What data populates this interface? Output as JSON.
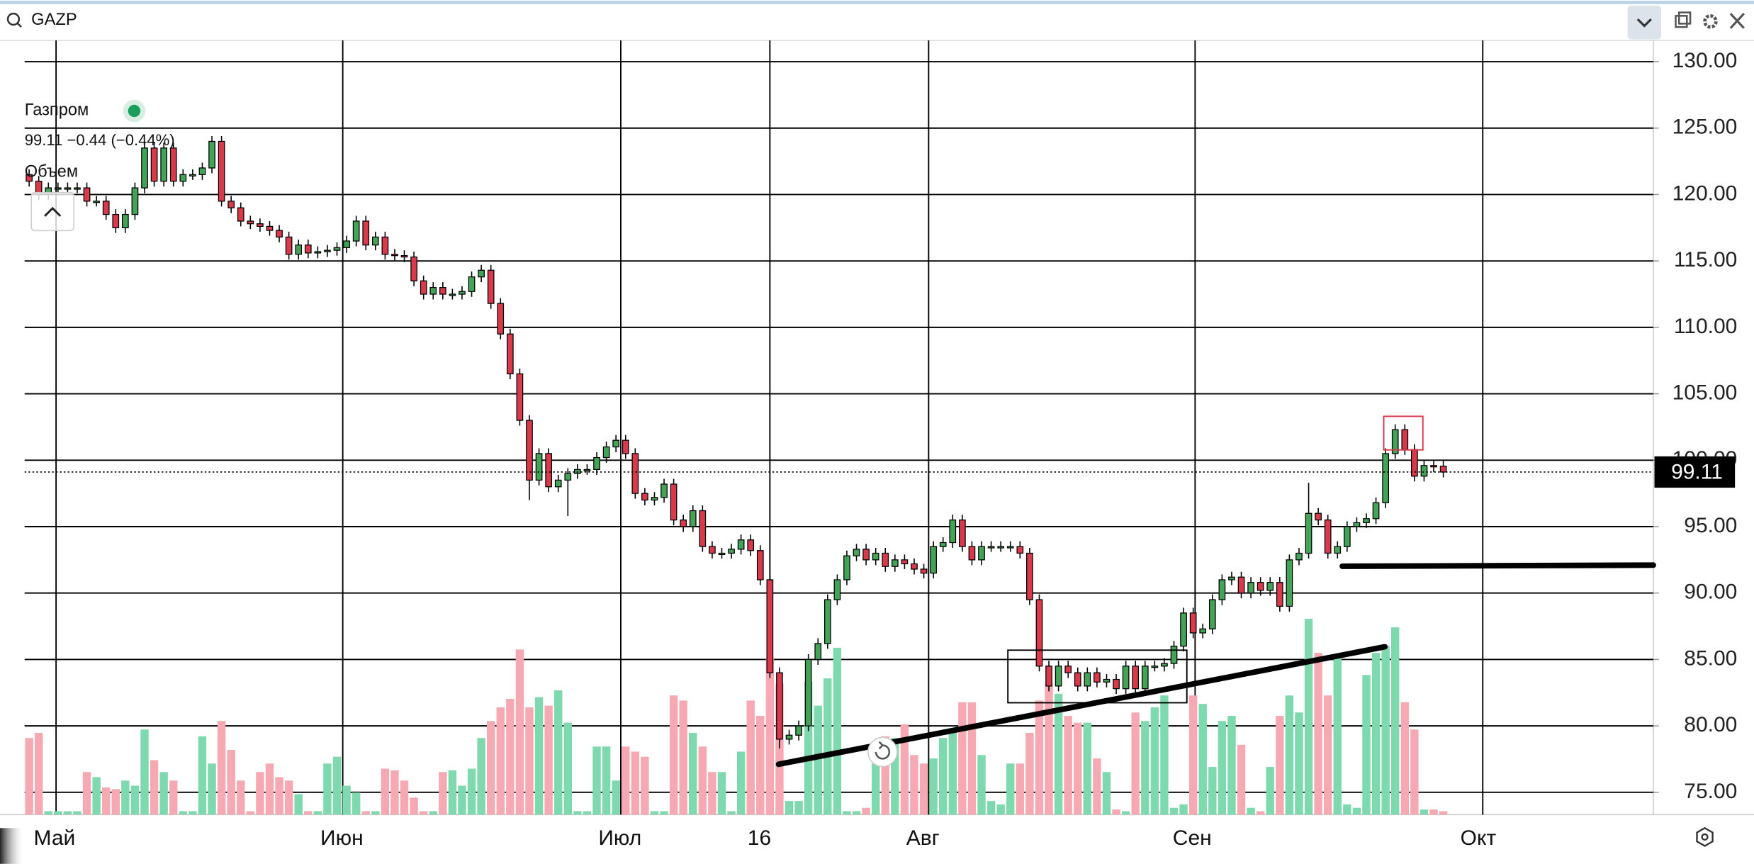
{
  "search": "GAZP",
  "legend": {
    "name": "Газпром",
    "quote": "99.11 −0.44 (−0.44%)",
    "volume_label": "Объем"
  },
  "chart_data": {
    "type": "candlestick",
    "categories": [
      null,
      null,
      null,
      null,
      null,
      null,
      null,
      null,
      null,
      null,
      null,
      null,
      null,
      null,
      null,
      null,
      null,
      null,
      null,
      null,
      null,
      null,
      null,
      null,
      null,
      null,
      null,
      null,
      null,
      null,
      null,
      null,
      null,
      null,
      null,
      null,
      null,
      null,
      null,
      null,
      null,
      null,
      null,
      null,
      null,
      null,
      null,
      null,
      null,
      null,
      null,
      null,
      null,
      null,
      null,
      null,
      null,
      null,
      null,
      null,
      null,
      null,
      null,
      null,
      null,
      null,
      null,
      null,
      null,
      null,
      null,
      null,
      null,
      null,
      null,
      null,
      null,
      null,
      null,
      null,
      null,
      null,
      null,
      null,
      null,
      null,
      null,
      null,
      null,
      null,
      null,
      null,
      null,
      null,
      null,
      null,
      null,
      null,
      null,
      null,
      null,
      null,
      null,
      null,
      null,
      null,
      null,
      null,
      null,
      null,
      null,
      null,
      null,
      null,
      null,
      null,
      null,
      null,
      null,
      null,
      null,
      null,
      null,
      null,
      null,
      null,
      null,
      null,
      null,
      null,
      null,
      null,
      null,
      null,
      null,
      null,
      null,
      null,
      null,
      null,
      null,
      null,
      null,
      null,
      null,
      null,
      null,
      null
    ],
    "open": [
      121.5,
      121,
      120,
      120.5,
      120.5,
      120.5,
      120.5,
      119.5,
      119.5,
      118.5,
      117.5,
      118.5,
      120.5,
      123.5,
      121,
      123.5,
      121,
      121.5,
      121.5,
      122,
      124,
      119.5,
      119,
      118,
      117.8,
      117.6,
      117.3,
      116.8,
      115.5,
      116.2,
      115.6,
      115.7,
      115.8,
      116,
      116.5,
      118,
      116.2,
      116.8,
      115.5,
      115.4,
      115.3,
      113.5,
      112.5,
      113,
      112.5,
      112.5,
      112.7,
      113.8,
      114.3,
      111.8,
      109.5,
      106.5,
      103,
      98.5,
      100.5,
      98,
      98.5,
      99,
      99.3,
      99.3,
      100.2,
      101,
      101.5,
      100.5,
      97.5,
      97,
      97.2,
      98.2,
      95.5,
      95,
      96.2,
      93.5,
      93,
      93,
      93.3,
      94,
      93.2,
      91,
      84,
      79,
      79.3,
      80,
      85,
      86.2,
      89.5,
      91,
      92.8,
      93.3,
      92.5,
      93,
      92,
      92.5,
      92.2,
      91.8,
      91.5,
      93.5,
      93.8,
      95.5,
      93.5,
      92.5,
      93.5,
      93.5,
      93.5,
      93.5,
      93,
      89.5,
      84.5,
      83,
      84.5,
      84,
      83,
      84,
      83.3,
      83.5,
      82.8,
      84.5,
      82.8,
      84.5,
      84.5,
      84.7,
      86,
      88.5,
      87,
      87.3,
      89.5,
      91,
      91.2,
      90,
      90.8,
      90.2,
      90.8,
      89,
      92.5,
      93,
      96,
      95.5,
      93,
      93.5,
      95,
      95.3,
      95.6,
      96.8,
      100.5,
      102.3,
      100.8,
      98.8,
      99.6,
      99.55
    ],
    "high": [
      121.9,
      121.4,
      120.9,
      120.9,
      120.9,
      120.9,
      120.9,
      119.9,
      119.9,
      118.9,
      118.9,
      120.9,
      123.9,
      123.9,
      123.9,
      123.9,
      121.9,
      121.9,
      122.4,
      124.4,
      124.4,
      119.9,
      119.4,
      118.4,
      118.2,
      118,
      117.7,
      117.2,
      116.6,
      116.6,
      116.1,
      116.2,
      116.4,
      116.9,
      118.4,
      118.4,
      117.2,
      117.2,
      115.9,
      115.8,
      115.7,
      113.9,
      113.4,
      113.4,
      112.9,
      113.1,
      114.2,
      114.7,
      114.7,
      112.2,
      109.9,
      106.9,
      103.4,
      100.9,
      100.9,
      98.9,
      99.4,
      99.7,
      99.7,
      100.6,
      101.4,
      101.9,
      101.9,
      100.9,
      97.9,
      97.6,
      98.6,
      98.6,
      95.9,
      96.6,
      96.6,
      93.9,
      93.4,
      93.7,
      94.4,
      94.4,
      93.6,
      91.4,
      84.4,
      79.7,
      80.4,
      85.4,
      86.6,
      89.9,
      91.4,
      93.2,
      93.7,
      93.7,
      93.4,
      93.4,
      92.9,
      92.9,
      92.6,
      92.2,
      93.9,
      94.2,
      95.9,
      95.9,
      93.9,
      93.9,
      93.9,
      93.9,
      93.9,
      93.9,
      93.4,
      89.9,
      84.9,
      84.9,
      84.9,
      84.4,
      84.4,
      84.4,
      83.9,
      83.9,
      84.9,
      84.9,
      84.9,
      84.9,
      85.1,
      86.4,
      88.9,
      88.9,
      87.7,
      89.9,
      91.4,
      91.6,
      91.6,
      91.2,
      91.2,
      91.2,
      91.2,
      92.9,
      93.4,
      98.3,
      96.4,
      95.9,
      93.9,
      95.4,
      95.7,
      96,
      97.2,
      100.9,
      102.7,
      102.7,
      101.2,
      100,
      100,
      99.95
    ],
    "low": [
      120.6,
      119.6,
      119.6,
      120.1,
      120.1,
      120.1,
      119.1,
      119.1,
      118.1,
      117.1,
      117.1,
      118.1,
      120.1,
      120.6,
      120.6,
      120.6,
      120.6,
      121.1,
      121.1,
      121.6,
      119.1,
      118.6,
      117.6,
      117.4,
      117.2,
      116.9,
      116.4,
      115.1,
      115.1,
      115.2,
      115.2,
      115.3,
      115.4,
      115.6,
      116.1,
      115.8,
      115.8,
      115.1,
      115,
      114.9,
      113.1,
      112.1,
      112.1,
      112.1,
      112.1,
      112.1,
      112.3,
      113.4,
      111.4,
      109.1,
      106.1,
      102.6,
      97,
      98.1,
      97.6,
      97.6,
      95.8,
      98.6,
      98.9,
      98.9,
      99.8,
      100.6,
      100.1,
      97.1,
      96.6,
      96.6,
      96.8,
      95.1,
      94.6,
      94.6,
      93.1,
      92.6,
      92.6,
      92.6,
      92.9,
      92.8,
      90.6,
      83.6,
      78.3,
      78.6,
      78.9,
      79.6,
      84.6,
      85.8,
      89.1,
      90.6,
      92.4,
      92.1,
      92.1,
      91.6,
      91.6,
      91.8,
      91.4,
      91.1,
      91.1,
      93.1,
      93.4,
      93.1,
      92.1,
      92.1,
      93.1,
      93.1,
      93.1,
      92.6,
      89.1,
      84.1,
      82.6,
      82.6,
      83.6,
      82.6,
      82.6,
      82.9,
      82.9,
      82.4,
      82.4,
      82.4,
      82.4,
      84.1,
      84.1,
      84.3,
      85.6,
      86.6,
      86.6,
      86.9,
      89.1,
      90.6,
      89.6,
      89.6,
      89.8,
      89.8,
      88.6,
      88.6,
      92.1,
      92.6,
      95.1,
      92.6,
      92.6,
      93.1,
      94.6,
      94.9,
      95.2,
      96.4,
      100.1,
      100.4,
      98.4,
      98.4,
      99.1,
      98.7
    ],
    "close": [
      121,
      120,
      120.5,
      120.5,
      120.5,
      120.5,
      119.5,
      119.5,
      118.5,
      117.5,
      118.5,
      120.5,
      123.5,
      121,
      123.5,
      121,
      121.5,
      121.5,
      122,
      124,
      119.5,
      119,
      118,
      117.8,
      117.6,
      117.3,
      116.8,
      115.5,
      116.2,
      115.6,
      115.7,
      115.8,
      116,
      116.5,
      118,
      116.2,
      116.8,
      115.5,
      115.4,
      115.3,
      113.5,
      112.5,
      113,
      112.5,
      112.5,
      112.7,
      113.8,
      114.3,
      111.8,
      109.5,
      106.5,
      103,
      98.5,
      100.5,
      98,
      98.5,
      99,
      99.3,
      99.3,
      100.2,
      101,
      101.5,
      100.5,
      97.5,
      97,
      97.2,
      98.2,
      95.5,
      95,
      96.2,
      93.5,
      93,
      93,
      93.3,
      94,
      93.2,
      91,
      84,
      79,
      79.3,
      80,
      85,
      86.2,
      89.5,
      91,
      92.8,
      93.3,
      92.5,
      93,
      92,
      92.5,
      92.2,
      91.8,
      91.5,
      93.5,
      93.8,
      95.5,
      93.5,
      92.5,
      93.5,
      93.5,
      93.5,
      93.5,
      93,
      89.5,
      84.5,
      83,
      84.5,
      84,
      83,
      84,
      83.3,
      83.5,
      82.8,
      84.5,
      82.8,
      84.5,
      84.5,
      84.7,
      86,
      88.5,
      87,
      87.3,
      89.5,
      91,
      91.2,
      90,
      90.8,
      90.2,
      90.8,
      89,
      92.5,
      93,
      96,
      95.5,
      93,
      93.5,
      95,
      95.3,
      95.6,
      96.8,
      100.5,
      102.3,
      100.8,
      98.8,
      99.6,
      99.55,
      99.11
    ],
    "volume": [
      45,
      48,
      2,
      2,
      2,
      2,
      25,
      22,
      16,
      15,
      20,
      17,
      50,
      32,
      25,
      20,
      2,
      2,
      46,
      30,
      55,
      38,
      20,
      2,
      25,
      30,
      22,
      20,
      12,
      2,
      2,
      30,
      34,
      17,
      13,
      2,
      2,
      27,
      26,
      20,
      10,
      2,
      2,
      25,
      26,
      17,
      27,
      45,
      55,
      63,
      68,
      97,
      63,
      69,
      64,
      73,
      54,
      2,
      2,
      40,
      40,
      20,
      40,
      37,
      34,
      2,
      2,
      70,
      67,
      48,
      40,
      25,
      25,
      2,
      37,
      67,
      58,
      92,
      77,
      8,
      8,
      78,
      64,
      80,
      98,
      2,
      2,
      4,
      30,
      46,
      45,
      53,
      35,
      30,
      33,
      45,
      50,
      66,
      66,
      35,
      8,
      6,
      30,
      30,
      48,
      67,
      77,
      71,
      58,
      54,
      54,
      33,
      25,
      3,
      2,
      60,
      55,
      63,
      70,
      4,
      6,
      70,
      65,
      28,
      55,
      58,
      41,
      4,
      2,
      28,
      58,
      70,
      60,
      115,
      95,
      70,
      94,
      6,
      4,
      82,
      95,
      99,
      110,
      66,
      50,
      3,
      3,
      2
    ],
    "colors": {
      "up": "#43a457",
      "down": "#d8394b",
      "volume_up": "#7fd9ae",
      "volume_down": "#f6a9b3"
    },
    "xlim": [
      -0.47,
      168.83
    ],
    "xticks": [
      {
        "value": 2.8,
        "label": "Май"
      },
      {
        "value": 32.6,
        "label": "Июн"
      },
      {
        "value": 61.5,
        "label": "Июл"
      },
      {
        "value": 77,
        "label": "16"
      },
      {
        "value": 93.5,
        "label": "Авг"
      },
      {
        "value": 121.2,
        "label": "Сен"
      },
      {
        "value": 151.1,
        "label": "Окт"
      }
    ],
    "ylim": [
      73.32,
      131.6
    ],
    "yticks": [
      {
        "value": 75,
        "label": "75.00"
      },
      {
        "value": 80,
        "label": "80.00"
      },
      {
        "value": 85,
        "label": "85.00"
      },
      {
        "value": 90,
        "label": "90.00"
      },
      {
        "value": 95,
        "label": "95.00"
      },
      {
        "value": 100,
        "label": "100.00"
      },
      {
        "value": 105,
        "label": "105.00"
      },
      {
        "value": 110,
        "label": "110.00"
      },
      {
        "value": 115,
        "label": "115.00"
      },
      {
        "value": 120,
        "label": "120.00"
      },
      {
        "value": 125,
        "label": "125.00"
      },
      {
        "value": 130,
        "label": "130.00"
      }
    ],
    "grid": true
  }
}
